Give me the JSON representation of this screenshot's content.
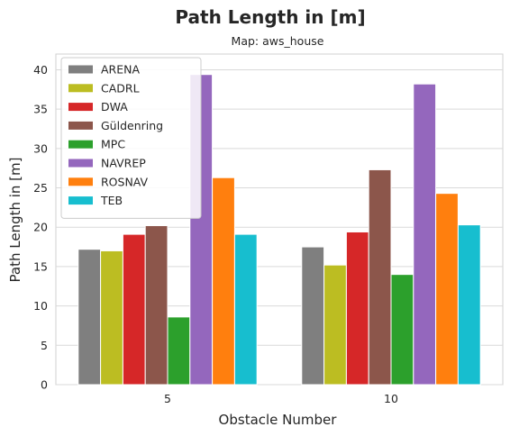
{
  "chart_data": {
    "type": "bar",
    "title": "Path Length in [m]",
    "subtitle": "Map: aws_house",
    "xlabel": "Obstacle Number",
    "ylabel": "Path Length in [m]",
    "categories": [
      "5",
      "10"
    ],
    "ylim": [
      0,
      42
    ],
    "yticks": [
      0,
      5,
      10,
      15,
      20,
      25,
      30,
      35,
      40
    ],
    "grid": true,
    "legend_position": "top-left",
    "series": [
      {
        "name": "ARENA",
        "color": "#7f7f7f",
        "values": [
          17.2,
          17.5
        ]
      },
      {
        "name": "CADRL",
        "color": "#bcbd22",
        "values": [
          17.0,
          15.2
        ]
      },
      {
        "name": "DWA",
        "color": "#d62728",
        "values": [
          19.1,
          19.4
        ]
      },
      {
        "name": "Güldenring",
        "color": "#8c564b",
        "values": [
          20.2,
          27.3
        ]
      },
      {
        "name": "MPC",
        "color": "#2ca02c",
        "values": [
          8.6,
          14.0
        ]
      },
      {
        "name": "NAVREP",
        "color": "#9467bd",
        "values": [
          39.4,
          38.2
        ]
      },
      {
        "name": "ROSNAV",
        "color": "#ff7f0e",
        "values": [
          26.3,
          24.3
        ]
      },
      {
        "name": "TEB",
        "color": "#17becf",
        "values": [
          19.1,
          20.3
        ]
      }
    ]
  }
}
